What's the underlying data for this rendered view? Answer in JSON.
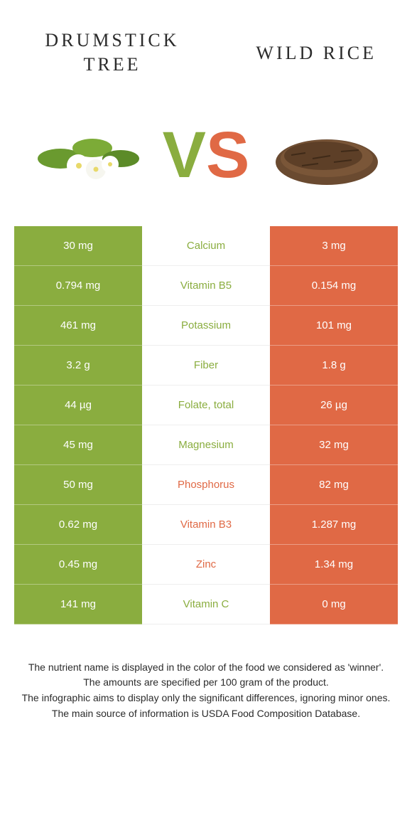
{
  "header": {
    "left_title_line1": "Drumstick",
    "left_title_line2": "tree",
    "right_title": "Wild rice",
    "vs_v": "V",
    "vs_s": "S"
  },
  "colors": {
    "green": "#8aad3f",
    "orange": "#e06945",
    "background": "#ffffff",
    "text": "#2b2b2b"
  },
  "rows": [
    {
      "left": "30 mg",
      "label": "Calcium",
      "right": "3 mg",
      "winner": "left"
    },
    {
      "left": "0.794 mg",
      "label": "Vitamin B5",
      "right": "0.154 mg",
      "winner": "left"
    },
    {
      "left": "461 mg",
      "label": "Potassium",
      "right": "101 mg",
      "winner": "left"
    },
    {
      "left": "3.2 g",
      "label": "Fiber",
      "right": "1.8 g",
      "winner": "left"
    },
    {
      "left": "44 µg",
      "label": "Folate, total",
      "right": "26 µg",
      "winner": "left"
    },
    {
      "left": "45 mg",
      "label": "Magnesium",
      "right": "32 mg",
      "winner": "left"
    },
    {
      "left": "50 mg",
      "label": "Phosphorus",
      "right": "82 mg",
      "winner": "right"
    },
    {
      "left": "0.62 mg",
      "label": "Vitamin B3",
      "right": "1.287 mg",
      "winner": "right"
    },
    {
      "left": "0.45 mg",
      "label": "Zinc",
      "right": "1.34 mg",
      "winner": "right"
    },
    {
      "left": "141 mg",
      "label": "Vitamin C",
      "right": "0 mg",
      "winner": "left"
    }
  ],
  "footer": {
    "line1": "The nutrient name is displayed in the color of the food we considered as 'winner'.",
    "line2": "The amounts are specified per 100 gram of the product.",
    "line3": "The infographic aims to display only the significant differences, ignoring minor ones.",
    "line4": "The main source of information is USDA Food Composition Database."
  }
}
